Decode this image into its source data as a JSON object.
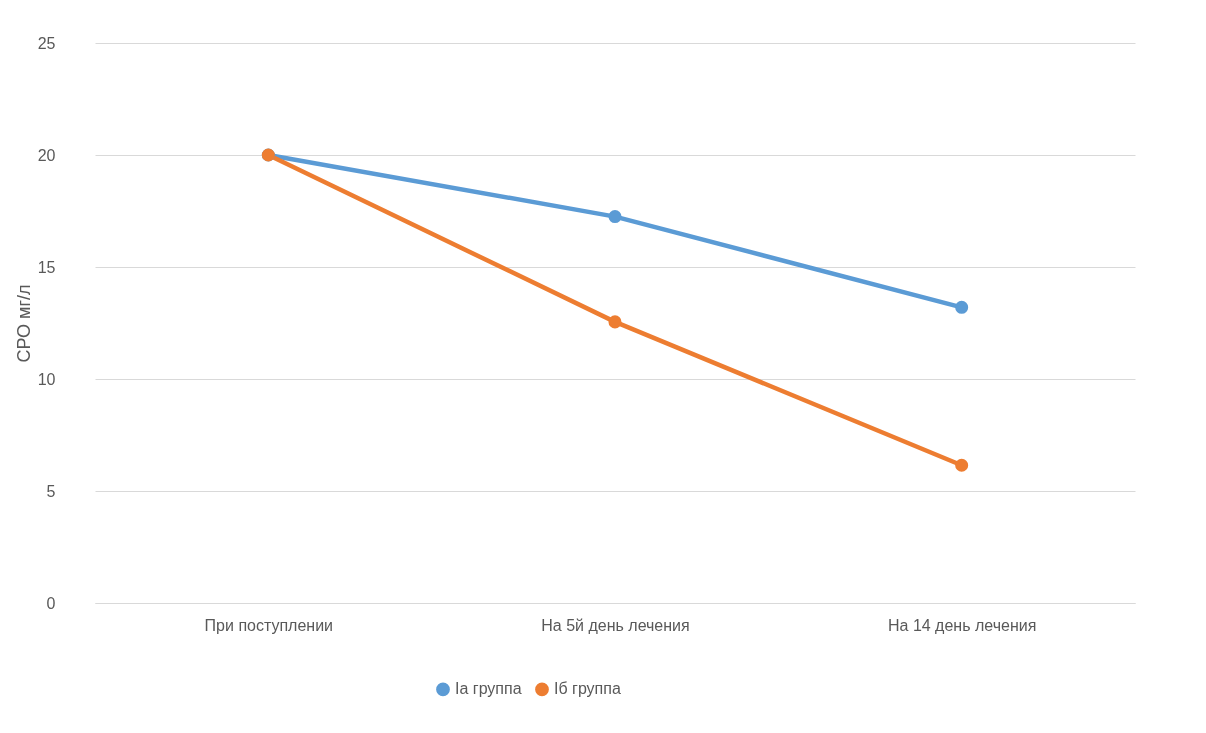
{
  "chart_data": {
    "type": "line",
    "ylabel": "СРО мг/л",
    "categories": [
      "При поступлении",
      "На 5й день лечения",
      "На 14 день лечения"
    ],
    "series": [
      {
        "name": "Iа группа",
        "color": "#5b9bd5",
        "values": [
          20,
          17.25,
          13.2
        ]
      },
      {
        "name": "Iб группа",
        "color": "#ed7d31",
        "values": [
          20,
          12.55,
          6.15
        ]
      }
    ],
    "ylim": [
      0,
      25
    ],
    "yticks": [
      0,
      5,
      10,
      15,
      20,
      25
    ],
    "grid": "y",
    "legend": "bottom",
    "marker": "circle",
    "line_style": "solid"
  }
}
